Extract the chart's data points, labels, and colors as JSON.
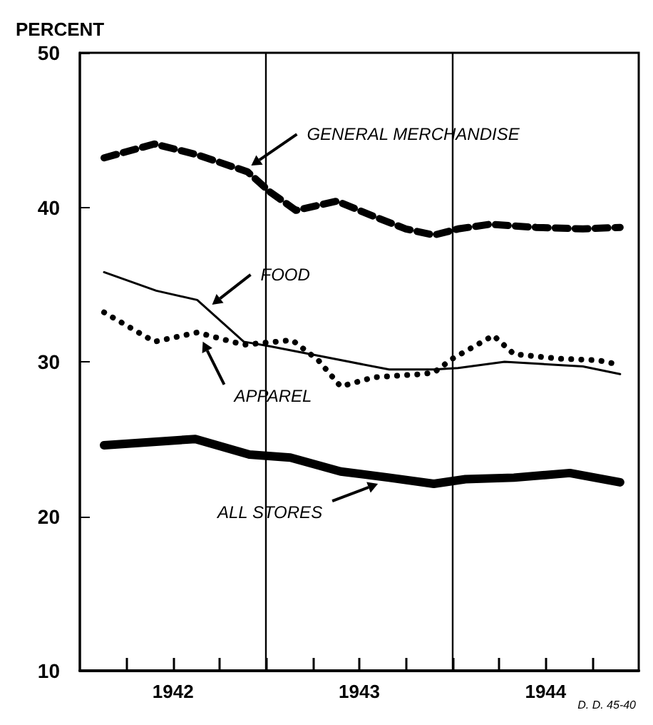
{
  "chart_data": {
    "type": "line",
    "ylabel": "PERCENT",
    "xlim": [
      1942,
      1945
    ],
    "ylim": [
      10,
      50
    ],
    "xticks": [
      {
        "value": 1942.25,
        "label": null
      },
      {
        "value": 1942.5,
        "label": "1942"
      },
      {
        "value": 1942.75,
        "label": null
      },
      {
        "value": 1943,
        "label": null
      },
      {
        "value": 1943.25,
        "label": null
      },
      {
        "value": 1943.5,
        "label": "1943"
      },
      {
        "value": 1943.75,
        "label": null
      },
      {
        "value": 1944,
        "label": null
      },
      {
        "value": 1944.25,
        "label": null
      },
      {
        "value": 1944.5,
        "label": "1944"
      },
      {
        "value": 1944.75,
        "label": null
      }
    ],
    "yticks": [
      10,
      20,
      30,
      40,
      50
    ],
    "grid": false,
    "marker": "none",
    "series": [
      {
        "color": "#000000",
        "line_style": "dashed",
        "x": [
          1942.13,
          1942.4,
          1942.63,
          1942.9,
          1943.02,
          1943.16,
          1943.38,
          1943.58,
          1943.75,
          1943.9,
          1944.03,
          1944.2,
          1944.45,
          1944.7,
          1944.9
        ],
        "values": [
          43.2,
          44.1,
          43.4,
          42.3,
          41.0,
          39.8,
          40.4,
          39.4,
          38.6,
          38.2,
          38.6,
          38.9,
          38.7,
          38.6,
          38.7
        ]
      },
      {
        "color": "#000000",
        "line_style": "solid",
        "x": [
          1942.13,
          1942.41,
          1942.63,
          1942.88,
          1943.02,
          1943.66,
          1943.9,
          1944.03,
          1944.28,
          1944.7,
          1944.9
        ],
        "values": [
          35.8,
          34.6,
          34.0,
          31.3,
          31.0,
          29.5,
          29.5,
          29.6,
          30.0,
          29.7,
          29.2
        ]
      },
      {
        "color": "#000000",
        "line_style": "dotted",
        "x": [
          1942.13,
          1942.4,
          1942.63,
          1942.88,
          1943.14,
          1943.28,
          1943.4,
          1943.58,
          1943.83,
          1943.9,
          1944.0,
          1944.22,
          1944.33,
          1944.57,
          1944.78,
          1944.9
        ],
        "values": [
          33.2,
          31.3,
          31.9,
          31.1,
          31.4,
          30.1,
          28.4,
          29.0,
          29.2,
          29.3,
          30.2,
          31.7,
          30.5,
          30.2,
          30.1,
          29.8
        ]
      },
      {
        "color": "#000000",
        "line_style": "solid",
        "x": [
          1942.13,
          1942.62,
          1942.91,
          1943.13,
          1943.4,
          1943.66,
          1943.9,
          1944.07,
          1944.33,
          1944.63,
          1944.9
        ],
        "values": [
          24.6,
          25.0,
          24.0,
          23.8,
          22.9,
          22.5,
          22.1,
          22.4,
          22.5,
          22.8,
          22.2
        ]
      }
    ],
    "ref_lines": [
      {
        "axis": "x",
        "value": 1943
      },
      {
        "axis": "x",
        "value": 1944
      }
    ],
    "annotations": [
      {
        "text": "GENERAL MERCHANDISE",
        "x": 1942.92,
        "y": 42.7
      },
      {
        "text": "FOOD",
        "x": 1942.71,
        "y": 33.7
      },
      {
        "text": "APPAREL",
        "x": 1942.66,
        "y": 31.3
      },
      {
        "text": "ALL STORES",
        "x": 1943.6,
        "y": 22.1
      },
      "D. D. 45-40"
    ]
  }
}
